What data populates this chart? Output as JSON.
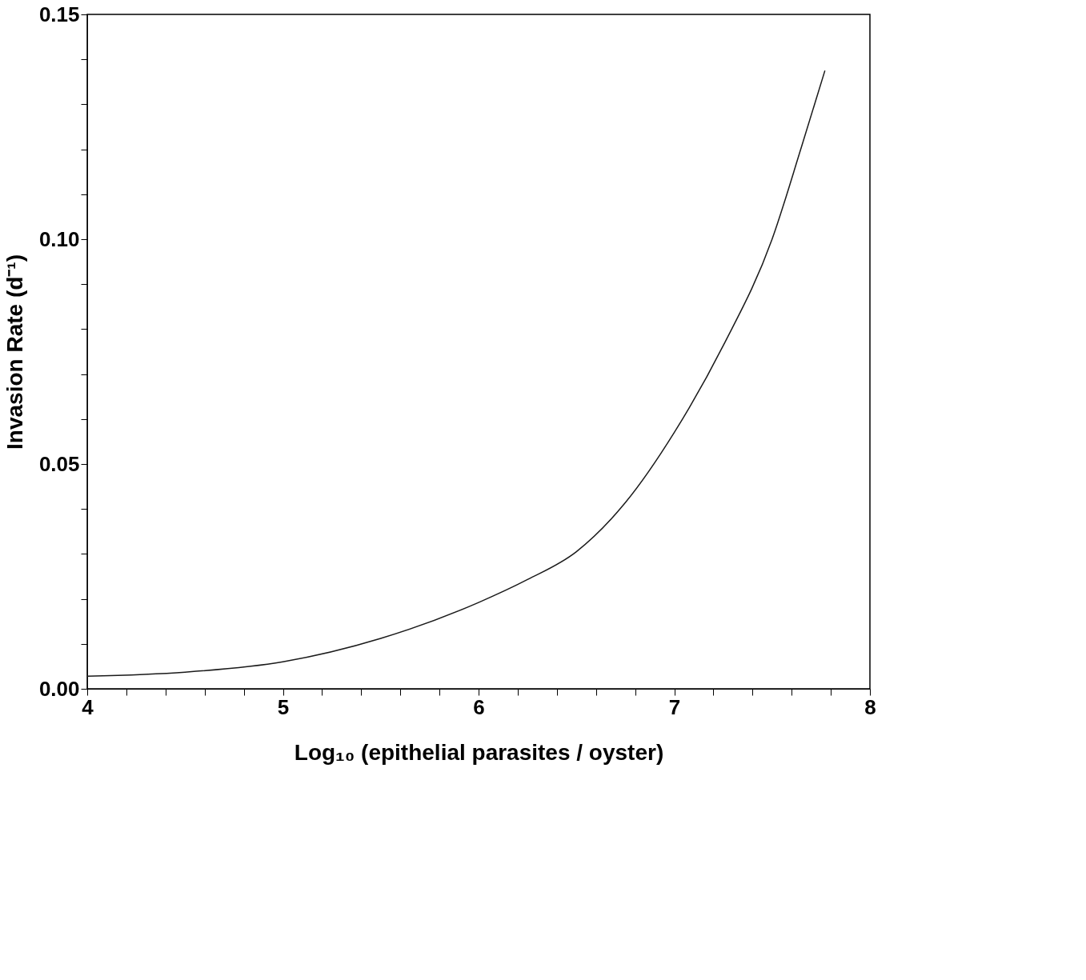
{
  "chart_data": {
    "type": "line",
    "xlabel": "Log₁₀ (epithelial parasites / oyster)",
    "ylabel": "Invasion Rate (d⁻¹)",
    "x": [
      4,
      4.5,
      5,
      5.5,
      6,
      6.25,
      6.5,
      6.75,
      7,
      7.25,
      7.5,
      7.65,
      7.77
    ],
    "series": [
      {
        "color": "#1a1a1a",
        "values": [
          0.0028,
          0.0037,
          0.006,
          0.0112,
          0.0192,
          0.0243,
          0.0305,
          0.0414,
          0.057,
          0.0763,
          0.1,
          0.1205,
          0.1375
        ]
      }
    ],
    "xlim": [
      4,
      8
    ],
    "ylim": [
      0,
      0.15
    ],
    "xticks": [
      4,
      {
        "value": 4.2,
        "label": null
      },
      {
        "value": 4.4,
        "label": null
      },
      {
        "value": 4.6,
        "label": null
      },
      {
        "value": 4.8,
        "label": null
      },
      5,
      {
        "value": 5.2,
        "label": null
      },
      {
        "value": 5.4,
        "label": null
      },
      {
        "value": 5.6,
        "label": null
      },
      {
        "value": 5.8,
        "label": null
      },
      6,
      {
        "value": 6.2,
        "label": null
      },
      {
        "value": 6.4,
        "label": null
      },
      {
        "value": 6.6,
        "label": null
      },
      {
        "value": 6.8,
        "label": null
      },
      7,
      {
        "value": 7.2,
        "label": null
      },
      {
        "value": 7.4,
        "label": null
      },
      {
        "value": 7.6,
        "label": null
      },
      {
        "value": 7.8,
        "label": null
      },
      8
    ],
    "yticks": [
      {
        "value": 0,
        "label": "0.00"
      },
      {
        "value": 0.01,
        "label": null
      },
      {
        "value": 0.02,
        "label": null
      },
      {
        "value": 0.03,
        "label": null
      },
      {
        "value": 0.04,
        "label": null
      },
      {
        "value": 0.05,
        "label": "0.05"
      },
      {
        "value": 0.06,
        "label": null
      },
      {
        "value": 0.07,
        "label": null
      },
      {
        "value": 0.08,
        "label": null
      },
      {
        "value": 0.09,
        "label": null
      },
      {
        "value": 0.1,
        "label": "0.10"
      },
      {
        "value": 0.11,
        "label": null
      },
      {
        "value": 0.12,
        "label": null
      },
      {
        "value": 0.13,
        "label": null
      },
      {
        "value": 0.14,
        "label": null
      },
      {
        "value": 0.15,
        "label": "0.15"
      }
    ],
    "grid": false,
    "marker": "none",
    "line_style": "solid"
  }
}
